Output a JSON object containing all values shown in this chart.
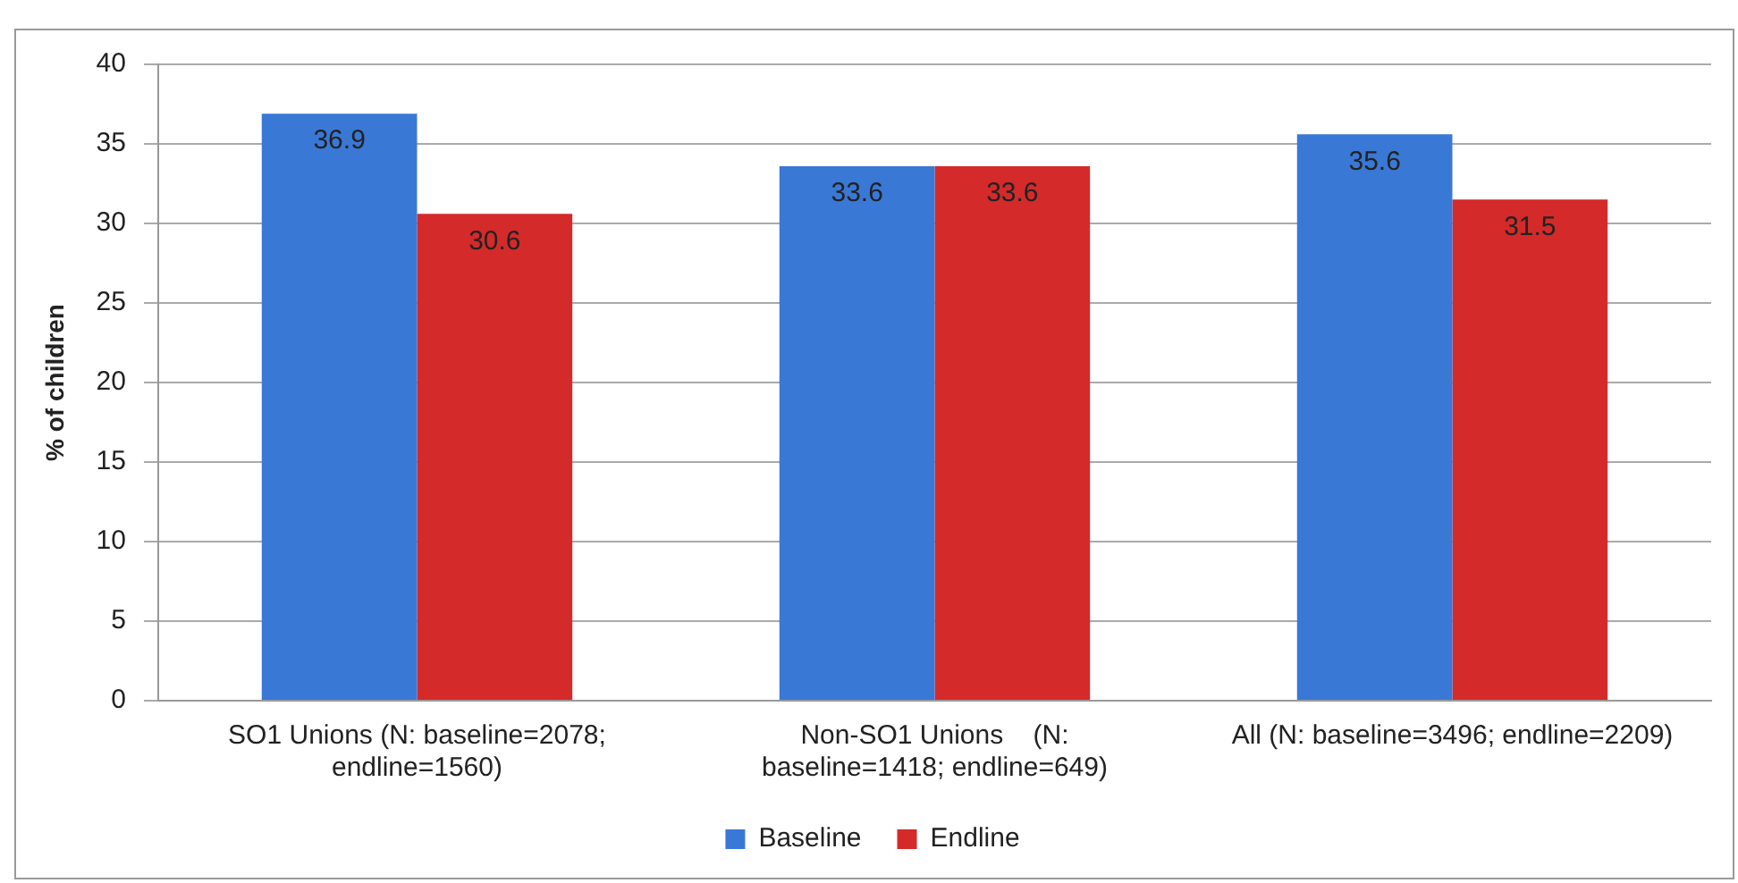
{
  "chart_data": {
    "type": "bar",
    "ylabel": "% of children",
    "categories": [
      "SO1 Unions (N: baseline=2078; endline=1560)",
      "Non-SO1 Unions    (N: baseline=1418; endline=649)",
      "All (N: baseline=3496; endline=2209)"
    ],
    "series": [
      {
        "name": "Baseline",
        "color": "#3a78d6",
        "values": [
          36.9,
          33.6,
          35.6
        ]
      },
      {
        "name": "Endline",
        "color": "#d42a2a",
        "values": [
          30.6,
          33.6,
          31.5
        ]
      }
    ],
    "ylim": [
      0,
      40
    ],
    "yticks": [
      0,
      5,
      10,
      15,
      20,
      25,
      30,
      35,
      40
    ],
    "grid": "y",
    "legend": "bottom",
    "data_labels": true
  }
}
